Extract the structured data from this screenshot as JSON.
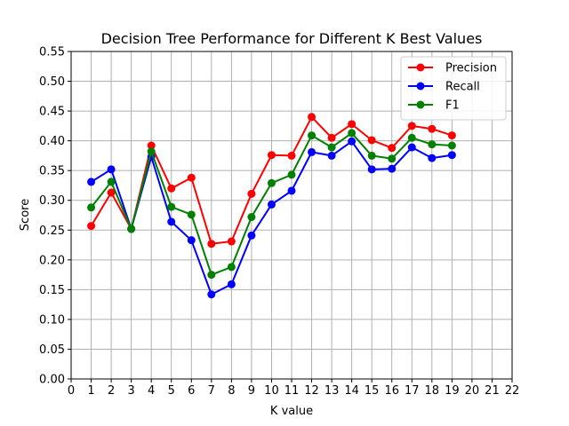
{
  "chart_data": {
    "type": "line",
    "title": "Decision Tree Performance for Different K Best Values",
    "xlabel": "K value",
    "ylabel": "Score",
    "xlim": [
      0,
      22
    ],
    "ylim": [
      0.0,
      0.55
    ],
    "x_ticks": [
      "0",
      "1",
      "2",
      "3",
      "4",
      "5",
      "6",
      "7",
      "8",
      "9",
      "10",
      "11",
      "12",
      "13",
      "14",
      "15",
      "16",
      "17",
      "18",
      "19",
      "20",
      "21",
      "22"
    ],
    "y_ticks": [
      "0.00",
      "0.05",
      "0.10",
      "0.15",
      "0.20",
      "0.25",
      "0.30",
      "0.35",
      "0.40",
      "0.45",
      "0.50",
      "0.55"
    ],
    "grid": true,
    "legend_position": "top-right",
    "x": [
      1,
      2,
      3,
      4,
      5,
      6,
      7,
      8,
      9,
      10,
      11,
      12,
      13,
      14,
      15,
      16,
      17,
      18,
      19
    ],
    "series": [
      {
        "name": "Precision",
        "color": "#ff0000",
        "values": [
          0.257,
          0.313,
          0.252,
          0.392,
          0.32,
          0.338,
          0.227,
          0.231,
          0.311,
          0.376,
          0.375,
          0.44,
          0.405,
          0.428,
          0.401,
          0.388,
          0.425,
          0.42,
          0.409
        ]
      },
      {
        "name": "Recall",
        "color": "#0000ff",
        "values": [
          0.331,
          0.352,
          0.252,
          0.373,
          0.264,
          0.233,
          0.142,
          0.159,
          0.241,
          0.293,
          0.316,
          0.381,
          0.375,
          0.399,
          0.352,
          0.353,
          0.389,
          0.371,
          0.376
        ]
      },
      {
        "name": "F1",
        "color": "#008000",
        "values": [
          0.288,
          0.331,
          0.252,
          0.382,
          0.289,
          0.276,
          0.175,
          0.188,
          0.272,
          0.329,
          0.343,
          0.409,
          0.389,
          0.413,
          0.375,
          0.37,
          0.405,
          0.394,
          0.392
        ]
      }
    ]
  }
}
